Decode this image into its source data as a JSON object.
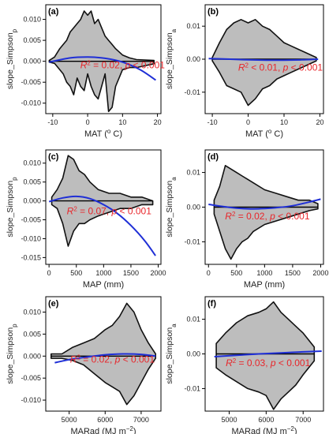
{
  "chart_data": [
    {
      "type": "scatter",
      "panel_label": "(a)",
      "xlabel": "MAT (",
      "xlabel_sup": "o",
      "xlabel_tail": " C)",
      "ylabel": "slope_Simpson",
      "ylabel_sub": "p",
      "xlim": [
        -12,
        21
      ],
      "ylim": [
        -0.0125,
        0.0135
      ],
      "xticks": [
        -10,
        0,
        10,
        20
      ],
      "yticks": [
        0.01,
        0.005,
        0.0,
        -0.005,
        -0.01
      ],
      "ytick_labels": [
        "0.010",
        "0.005",
        "0.000",
        "-0.005",
        "-0.010"
      ],
      "annotation": {
        "r2": "0.02",
        "p": "p < 0.001",
        "x": 10,
        "y": -0.0017
      },
      "point_envelope": {
        "x": [
          -11,
          -9.5,
          -8,
          -7,
          -6,
          -5,
          -4,
          -3,
          -2,
          -1,
          0,
          1,
          2,
          3,
          4,
          5,
          6,
          7,
          8,
          10,
          12,
          14,
          19
        ],
        "upper": [
          0.0002,
          0.001,
          0.003,
          0.004,
          0.005,
          0.007,
          0.008,
          0.009,
          0.01,
          0.012,
          0.011,
          0.012,
          0.009,
          0.01,
          0.008,
          0.006,
          0.005,
          0.004,
          0.003,
          0.0015,
          0.0008,
          0.0004,
          0.0002
        ],
        "lower": [
          -0.0002,
          -0.0005,
          -0.002,
          -0.003,
          -0.005,
          -0.006,
          -0.008,
          -0.004,
          -0.006,
          -0.007,
          -0.003,
          -0.006,
          -0.008,
          -0.009,
          -0.006,
          -0.003,
          -0.012,
          -0.011,
          -0.006,
          -0.002,
          -0.0015,
          -0.0015,
          -0.0006
        ]
      },
      "fit": {
        "x": [
          -11,
          -5,
          0,
          5,
          10,
          15,
          19.5
        ],
        "y": [
          -0.0002,
          0.0008,
          0.001,
          0.0007,
          -0.0002,
          -0.002,
          -0.0045
        ]
      }
    },
    {
      "type": "scatter",
      "panel_label": "(b)",
      "xlabel": "MAT (",
      "xlabel_sup": "o",
      "xlabel_tail": " C)",
      "ylabel": "slope_Simpson",
      "ylabel_sub": "a",
      "xlim": [
        -12,
        21
      ],
      "ylim": [
        -0.0165,
        0.0165
      ],
      "xticks": [
        -10,
        0,
        10,
        20
      ],
      "yticks": [
        0.01,
        0.0,
        -0.01
      ],
      "ytick_labels": [
        "0.01",
        "0.00",
        "-0.01"
      ],
      "annotation": {
        "r2": "< 0.01",
        "p": "p < 0.001",
        "x": 9,
        "y": -0.0035
      },
      "point_envelope": {
        "x": [
          -10,
          -8,
          -6,
          -4,
          -2,
          0,
          2,
          4,
          6,
          8,
          10,
          12,
          14,
          16,
          19
        ],
        "upper": [
          0.0005,
          0.005,
          0.009,
          0.011,
          0.012,
          0.011,
          0.012,
          0.01,
          0.009,
          0.007,
          0.005,
          0.004,
          0.003,
          0.002,
          0.0005
        ],
        "lower": [
          -0.0005,
          -0.004,
          -0.008,
          -0.009,
          -0.01,
          -0.014,
          -0.012,
          -0.009,
          -0.008,
          -0.006,
          -0.005,
          -0.004,
          -0.003,
          -0.002,
          -0.0005
        ]
      },
      "fit": {
        "x": [
          -11,
          -5,
          0,
          5,
          10,
          15,
          19.5
        ],
        "y": [
          0.0002,
          0.0,
          -0.0002,
          -0.0003,
          -0.0003,
          -0.0002,
          0.0
        ]
      }
    },
    {
      "type": "scatter",
      "panel_label": "(c)",
      "xlabel": "MAP (mm)",
      "ylabel": "slope_Simpson",
      "ylabel_sub": "p",
      "xlim": [
        -60,
        2050
      ],
      "ylim": [
        -0.0168,
        0.0135
      ],
      "xticks": [
        0,
        500,
        1000,
        1500,
        2000
      ],
      "yticks": [
        0.01,
        0.005,
        0.0,
        -0.005,
        -0.01,
        -0.015
      ],
      "ytick_labels": [
        "0.010",
        "0.005",
        "0.000",
        "-0.005",
        "-0.010",
        "-0.015"
      ],
      "annotation": {
        "r2": "0.07",
        "p": "p < 0.001",
        "x": 1100,
        "y": -0.0035
      },
      "point_envelope": {
        "x": [
          50,
          150,
          250,
          350,
          450,
          550,
          650,
          750,
          900,
          1100,
          1300,
          1500,
          1700,
          1900
        ],
        "upper": [
          0.001,
          0.003,
          0.006,
          0.012,
          0.011,
          0.008,
          0.007,
          0.005,
          0.003,
          0.002,
          0.002,
          0.001,
          0.001,
          0.0
        ],
        "lower": [
          -0.001,
          -0.002,
          -0.006,
          -0.012,
          -0.008,
          -0.006,
          -0.006,
          -0.005,
          -0.004,
          -0.003,
          -0.002,
          -0.002,
          -0.001,
          -0.001
        ]
      },
      "fit": {
        "x": [
          0,
          250,
          500,
          750,
          1000,
          1250,
          1500,
          1750,
          1950
        ],
        "y": [
          -0.0002,
          0.0008,
          0.0012,
          0.0006,
          -0.001,
          -0.0033,
          -0.0065,
          -0.0105,
          -0.0145
        ]
      }
    },
    {
      "type": "scatter",
      "panel_label": "(d)",
      "xlabel": "MAP (mm)",
      "ylabel": "slope_Simpson",
      "ylabel_sub": "a",
      "xlim": [
        -60,
        2050
      ],
      "ylim": [
        -0.0165,
        0.0165
      ],
      "xticks": [
        0,
        500,
        1000,
        1500,
        2000
      ],
      "yticks": [
        0.01,
        0.0,
        -0.01
      ],
      "ytick_labels": [
        "0.01",
        "0.00",
        "-0.01"
      ],
      "annotation": {
        "r2": "0.02",
        "p": "p < 0.001",
        "x": 1050,
        "y": -0.0035
      },
      "point_envelope": {
        "x": [
          100,
          200,
          300,
          400,
          500,
          600,
          700,
          800,
          1000,
          1200,
          1400,
          1600,
          1800,
          1950
        ],
        "upper": [
          0.002,
          0.006,
          0.012,
          0.011,
          0.01,
          0.009,
          0.008,
          0.007,
          0.005,
          0.004,
          0.003,
          0.002,
          0.002,
          0.001
        ],
        "lower": [
          -0.002,
          -0.007,
          -0.012,
          -0.015,
          -0.012,
          -0.01,
          -0.009,
          -0.007,
          -0.005,
          -0.004,
          -0.003,
          -0.002,
          -0.001,
          -0.0005
        ]
      },
      "fit": {
        "x": [
          0,
          250,
          500,
          750,
          1000,
          1250,
          1500,
          1750,
          2000
        ],
        "y": [
          0.0008,
          0.0002,
          -0.0003,
          -0.0005,
          -0.0004,
          -0.0001,
          0.0004,
          0.0013,
          0.0023
        ]
      }
    },
    {
      "type": "scatter",
      "panel_label": "(e)",
      "xlabel": "MARad (MJ m",
      "xlabel_sup": "−2",
      "xlabel_tail": ")",
      "ylabel": "slope_Simpson",
      "ylabel_sub": "p",
      "xlim": [
        4350,
        7550
      ],
      "ylim": [
        -0.0125,
        0.0135
      ],
      "xticks": [
        5000,
        6000,
        7000
      ],
      "yticks": [
        0.01,
        0.005,
        0.0,
        -0.005,
        -0.01
      ],
      "ytick_labels": [
        "0.010",
        "0.005",
        "0.000",
        "-0.005",
        "-0.010"
      ],
      "annotation": {
        "r2": "0.02",
        "p": "p < 0.001",
        "x": 6200,
        "y": -0.0015
      },
      "point_envelope": {
        "x": [
          4500,
          4800,
          5100,
          5400,
          5700,
          6000,
          6200,
          6400,
          6600,
          6800,
          7000,
          7200,
          7400
        ],
        "upper": [
          0.0005,
          0.0005,
          0.002,
          0.003,
          0.004,
          0.006,
          0.007,
          0.009,
          0.012,
          0.01,
          0.006,
          0.003,
          0.0005
        ],
        "lower": [
          -0.0005,
          -0.0005,
          -0.001,
          -0.002,
          -0.004,
          -0.006,
          -0.007,
          -0.008,
          -0.011,
          -0.009,
          -0.006,
          -0.003,
          -0.0005
        ]
      },
      "fit": {
        "x": [
          4600,
          5000,
          5500,
          6000,
          6500,
          7000,
          7400
        ],
        "y": [
          -0.0015,
          -0.0008,
          -0.0002,
          0.0003,
          0.0005,
          0.0004,
          0.0
        ]
      }
    },
    {
      "type": "scatter",
      "panel_label": "(f)",
      "xlabel": "MARad (MJ m",
      "xlabel_sup": "−2",
      "xlabel_tail": ")",
      "ylabel": "slope_Simpson",
      "ylabel_sub": "a",
      "xlim": [
        4350,
        7550
      ],
      "ylim": [
        -0.0165,
        0.0165
      ],
      "xticks": [
        5000,
        6000,
        7000
      ],
      "yticks": [
        0.01,
        0.0,
        -0.01
      ],
      "ytick_labels": [
        "0.01",
        "0.00",
        "-0.01"
      ],
      "annotation": {
        "r2": "0.03",
        "p": "p < 0.001",
        "x": 6050,
        "y": -0.0035
      },
      "point_envelope": {
        "x": [
          4650,
          4900,
          5200,
          5500,
          5800,
          6000,
          6200,
          6400,
          6600,
          6800,
          7000,
          7300
        ],
        "upper": [
          0.003,
          0.006,
          0.009,
          0.011,
          0.012,
          0.013,
          0.015,
          0.012,
          0.01,
          0.008,
          0.006,
          0.002
        ],
        "lower": [
          -0.004,
          -0.006,
          -0.008,
          -0.01,
          -0.011,
          -0.012,
          -0.016,
          -0.013,
          -0.011,
          -0.009,
          -0.006,
          -0.002
        ]
      },
      "fit": {
        "x": [
          4600,
          5200,
          5800,
          6400,
          7000,
          7500
        ],
        "y": [
          -0.0008,
          -0.0004,
          0.0,
          0.0003,
          0.0006,
          0.0008
        ]
      }
    }
  ]
}
